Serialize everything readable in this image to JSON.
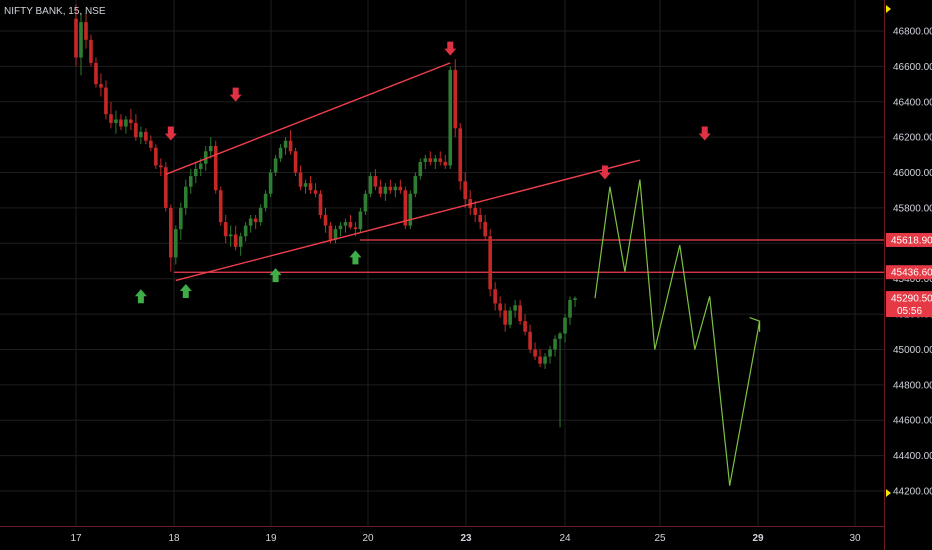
{
  "title": "NIFTY BANK, 15, NSE",
  "colors": {
    "background": "#000000",
    "grid": "#1e1e1e",
    "text": "#d1d4dc",
    "up": "#2e7d32",
    "down": "#c62828",
    "trendline": "#ef3f4c",
    "projection": "#7cc242",
    "badge": "#e53945",
    "up_arrow": "#3fae49",
    "down_arrow": "#e03043",
    "marker": "#f2e600"
  },
  "chart_data": {
    "type": "line",
    "symbol": "NIFTY BANK",
    "interval": "15",
    "exchange": "NSE",
    "ylim": [
      44080,
      46880
    ],
    "y_ticks": [
      44200,
      44400,
      44600,
      44800,
      45000,
      45200,
      45400,
      45600,
      45800,
      46000,
      46200,
      46400,
      46600,
      46800
    ],
    "y_tick_labels": [
      "44200.00",
      "44400.00",
      "44600.00",
      "44800.00",
      "45000.00",
      "45200.00",
      "45400.00",
      "45600.00",
      "45800.00",
      "46000.00",
      "46200.00",
      "46400.00",
      "46600.00",
      "46800.00"
    ],
    "x_ticks": [
      {
        "label": "17",
        "bold": false
      },
      {
        "label": "18",
        "bold": false
      },
      {
        "label": "19",
        "bold": false
      },
      {
        "label": "20",
        "bold": false
      },
      {
        "label": "23",
        "bold": true
      },
      {
        "label": "24",
        "bold": false
      },
      {
        "label": "25",
        "bold": false
      },
      {
        "label": "29",
        "bold": true
      },
      {
        "label": "30",
        "bold": false
      }
    ],
    "price_labels": [
      {
        "value": 45618.9,
        "text": "45618.90"
      },
      {
        "value": 45436.6,
        "text": "45436.60"
      },
      {
        "value": 45290.5,
        "text": "45290.50"
      }
    ],
    "countdown": "05:56",
    "horizontal_lines": [
      45618.9,
      45436.6
    ],
    "trendlines": [
      {
        "name": "upper channel",
        "from": {
          "bar": 18,
          "value": 45990
        },
        "to": {
          "bar": 75,
          "value": 46620
        }
      },
      {
        "name": "lower channel",
        "from": {
          "bar": 20,
          "value": 45390
        },
        "to": {
          "bar": 113,
          "value": 46070
        }
      }
    ],
    "candles": [
      [
        46870,
        46950,
        46600,
        46650
      ],
      [
        46650,
        46900,
        46550,
        46850
      ],
      [
        46850,
        46900,
        46700,
        46750
      ],
      [
        46750,
        46780,
        46600,
        46620
      ],
      [
        46620,
        46650,
        46480,
        46500
      ],
      [
        46500,
        46560,
        46430,
        46480
      ],
      [
        46480,
        46520,
        46300,
        46330
      ],
      [
        46330,
        46400,
        46250,
        46280
      ],
      [
        46280,
        46350,
        46220,
        46300
      ],
      [
        46300,
        46330,
        46240,
        46260
      ],
      [
        46260,
        46320,
        46220,
        46300
      ],
      [
        46300,
        46360,
        46240,
        46280
      ],
      [
        46280,
        46330,
        46180,
        46200
      ],
      [
        46200,
        46260,
        46160,
        46230
      ],
      [
        46230,
        46250,
        46160,
        46180
      ],
      [
        46180,
        46210,
        46120,
        46140
      ],
      [
        46140,
        46160,
        46020,
        46040
      ],
      [
        46040,
        46080,
        45980,
        46030
      ],
      [
        46030,
        46060,
        45780,
        45800
      ],
      [
        45800,
        45820,
        45440,
        45520
      ],
      [
        45520,
        45700,
        45480,
        45680
      ],
      [
        45680,
        45830,
        45620,
        45800
      ],
      [
        45800,
        45960,
        45760,
        45920
      ],
      [
        45920,
        46020,
        45880,
        45980
      ],
      [
        45980,
        46060,
        45940,
        46020
      ],
      [
        46020,
        46080,
        45980,
        46050
      ],
      [
        46050,
        46150,
        46010,
        46120
      ],
      [
        46120,
        46200,
        46080,
        46150
      ],
      [
        46150,
        46180,
        45880,
        45900
      ],
      [
        45900,
        45920,
        45700,
        45720
      ],
      [
        45720,
        45760,
        45600,
        45640
      ],
      [
        45640,
        45700,
        45580,
        45650
      ],
      [
        45650,
        45700,
        45560,
        45580
      ],
      [
        45580,
        45660,
        45530,
        45640
      ],
      [
        45640,
        45720,
        45610,
        45700
      ],
      [
        45700,
        45760,
        45660,
        45740
      ],
      [
        45740,
        45760,
        45680,
        45720
      ],
      [
        45720,
        45820,
        45700,
        45800
      ],
      [
        45800,
        45900,
        45780,
        45880
      ],
      [
        45880,
        46020,
        45860,
        46000
      ],
      [
        46000,
        46100,
        45980,
        46080
      ],
      [
        46080,
        46160,
        46060,
        46140
      ],
      [
        46140,
        46200,
        46100,
        46180
      ],
      [
        46180,
        46240,
        46100,
        46120
      ],
      [
        46120,
        46140,
        45980,
        46000
      ],
      [
        46000,
        46040,
        45900,
        45920
      ],
      [
        45920,
        45960,
        45880,
        45940
      ],
      [
        45940,
        45980,
        45880,
        45900
      ],
      [
        45900,
        45940,
        45860,
        45880
      ],
      [
        45880,
        45900,
        45740,
        45760
      ],
      [
        45760,
        45800,
        45660,
        45700
      ],
      [
        45700,
        45720,
        45600,
        45620
      ],
      [
        45620,
        45700,
        45600,
        45680
      ],
      [
        45680,
        45720,
        45640,
        45700
      ],
      [
        45700,
        45740,
        45660,
        45720
      ],
      [
        45720,
        45760,
        45680,
        45690
      ],
      [
        45690,
        45720,
        45640,
        45680
      ],
      [
        45680,
        45800,
        45660,
        45780
      ],
      [
        45780,
        45900,
        45760,
        45880
      ],
      [
        45880,
        46000,
        45860,
        45980
      ],
      [
        45980,
        46020,
        45900,
        45920
      ],
      [
        45920,
        45960,
        45860,
        45880
      ],
      [
        45880,
        45940,
        45840,
        45920
      ],
      [
        45920,
        45960,
        45880,
        45900
      ],
      [
        45900,
        45940,
        45860,
        45920
      ],
      [
        45920,
        45960,
        45880,
        45900
      ],
      [
        45900,
        45920,
        45680,
        45700
      ],
      [
        45700,
        45900,
        45680,
        45880
      ],
      [
        45880,
        46000,
        45860,
        45980
      ],
      [
        45980,
        46080,
        45960,
        46060
      ],
      [
        46060,
        46100,
        46020,
        46080
      ],
      [
        46080,
        46120,
        46040,
        46060
      ],
      [
        46060,
        46100,
        46020,
        46080
      ],
      [
        46080,
        46120,
        46040,
        46060
      ],
      [
        46060,
        46100,
        46020,
        46040
      ],
      [
        46040,
        46600,
        46020,
        46580
      ],
      [
        46580,
        46640,
        46200,
        46250
      ],
      [
        46250,
        46280,
        45900,
        45950
      ],
      [
        45950,
        46000,
        45800,
        45850
      ],
      [
        45850,
        45900,
        45760,
        45800
      ],
      [
        45800,
        45840,
        45720,
        45760
      ],
      [
        45760,
        45800,
        45680,
        45720
      ],
      [
        45720,
        45760,
        45620,
        45640
      ],
      [
        45640,
        45680,
        45300,
        45340
      ],
      [
        45340,
        45380,
        45220,
        45260
      ],
      [
        45260,
        45300,
        45180,
        45220
      ],
      [
        45220,
        45260,
        45100,
        45140
      ],
      [
        45140,
        45240,
        45120,
        45220
      ],
      [
        45220,
        45280,
        45180,
        45250
      ],
      [
        45250,
        45280,
        45140,
        45160
      ],
      [
        45160,
        45200,
        45080,
        45100
      ],
      [
        45100,
        45140,
        44980,
        45000
      ],
      [
        45000,
        45040,
        44940,
        44960
      ],
      [
        44960,
        45000,
        44900,
        44920
      ],
      [
        44920,
        44980,
        44890,
        44960
      ],
      [
        44960,
        45020,
        44920,
        45000
      ],
      [
        45000,
        45080,
        44960,
        45060
      ],
      [
        45060,
        45100,
        44560,
        45090
      ],
      [
        45090,
        45200,
        45040,
        45180
      ],
      [
        45180,
        45300,
        45140,
        45280
      ],
      [
        45280,
        45300,
        45240,
        45290
      ]
    ],
    "projection": [
      [
        104,
        45290
      ],
      [
        107,
        45920
      ],
      [
        110,
        45440
      ],
      [
        113,
        45960
      ],
      [
        116,
        45000
      ],
      [
        121,
        45590
      ],
      [
        124,
        45000
      ],
      [
        127,
        45300
      ],
      [
        131,
        44230
      ],
      [
        137,
        45160
      ],
      [
        135,
        45180
      ],
      [
        137,
        45160
      ],
      [
        137,
        45100
      ]
    ],
    "down_arrows": [
      {
        "bar": 19,
        "value": 46260
      },
      {
        "bar": 32,
        "value": 46480
      },
      {
        "bar": 75,
        "value": 46740
      },
      {
        "bar": 106,
        "value": 46040
      },
      {
        "bar": 126,
        "value": 46260
      }
    ],
    "up_arrows": [
      {
        "bar": 13,
        "value": 45340
      },
      {
        "bar": 22,
        "value": 45370
      },
      {
        "bar": 40,
        "value": 45460
      },
      {
        "bar": 56,
        "value": 45560
      }
    ]
  }
}
